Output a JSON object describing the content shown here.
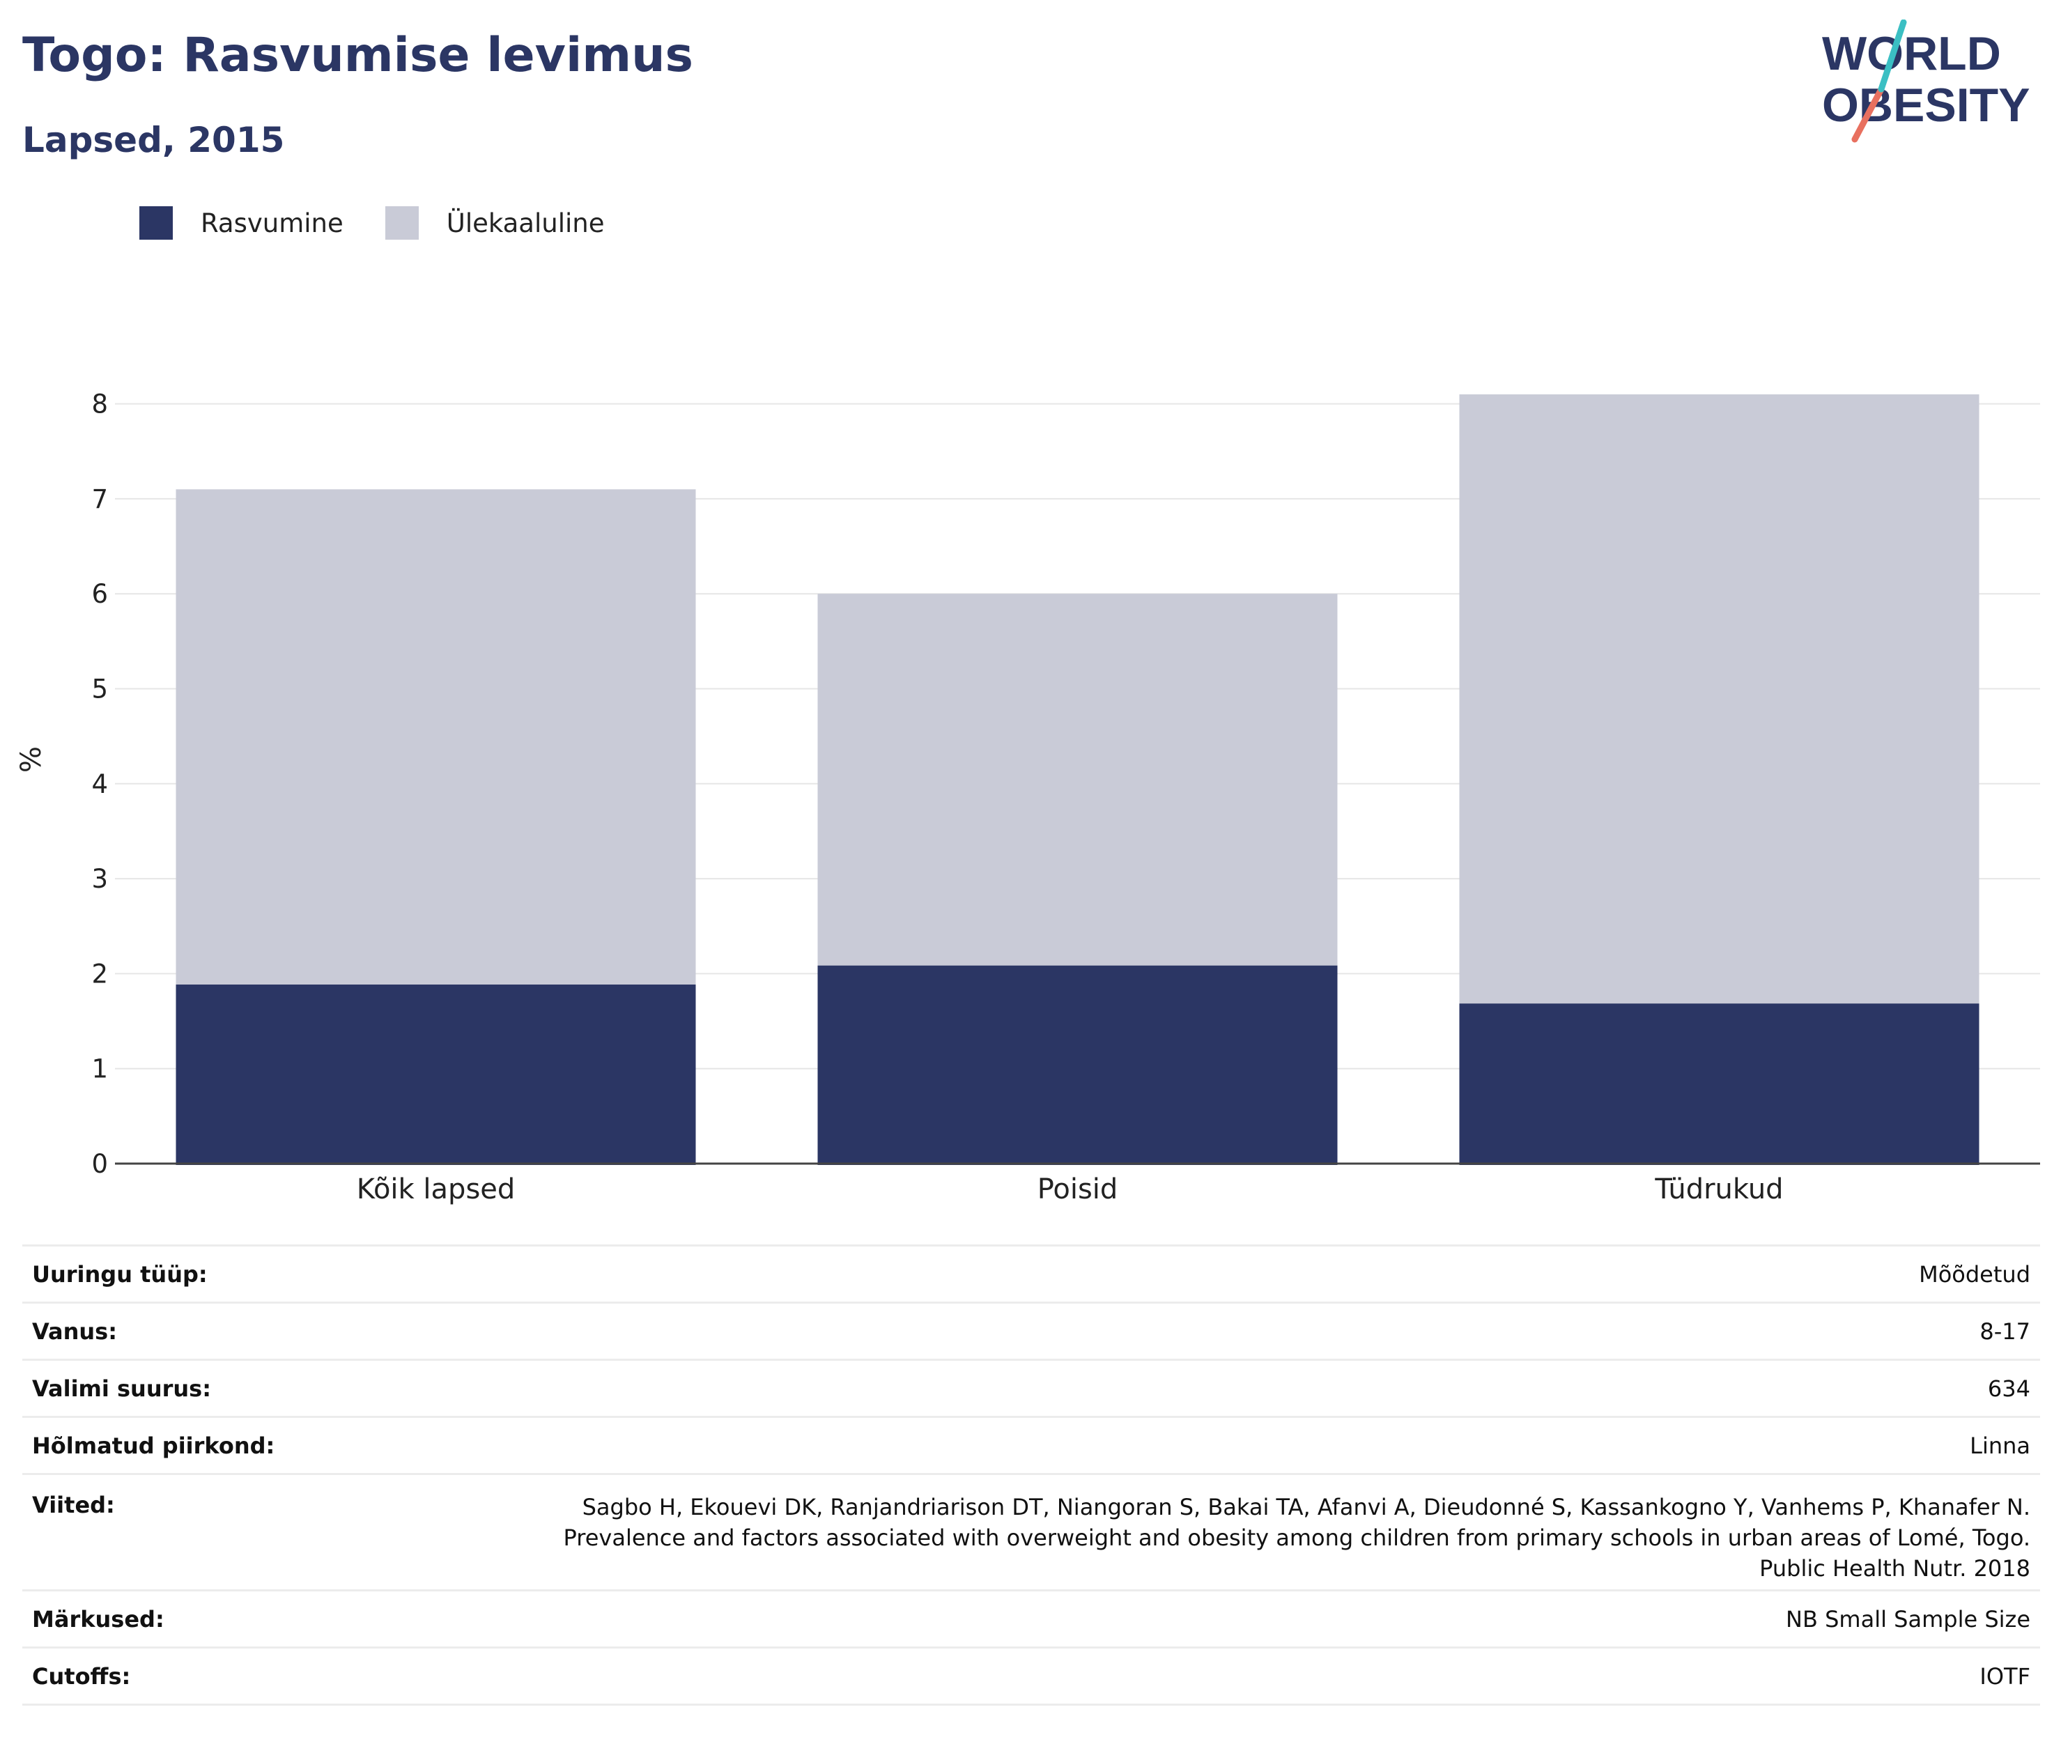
{
  "header": {
    "title": "Togo: Rasvumise levimus",
    "subtitle": "Lapsed, 2015",
    "logo": {
      "line1": "WORLD",
      "line2": "OBESITY"
    }
  },
  "legend": [
    {
      "label": "Rasvumine",
      "color": "#2b3664"
    },
    {
      "label": "Ülekaaluline",
      "color": "#c9cbd7"
    }
  ],
  "chart_data": {
    "type": "bar",
    "stacked": true,
    "categories": [
      "Kõik lapsed",
      "Poisid",
      "Tüdrukud"
    ],
    "series": [
      {
        "name": "Rasvumine",
        "color": "#2b3664",
        "values": [
          1.9,
          2.1,
          1.7
        ]
      },
      {
        "name": "Ülekaaluline",
        "color": "#c9cbd7",
        "values": [
          5.2,
          3.9,
          6.4
        ]
      }
    ],
    "ylabel": "%",
    "ylim": [
      0,
      8.2
    ],
    "yticks": [
      0,
      1,
      2,
      3,
      4,
      5,
      6,
      7,
      8
    ],
    "grid": true,
    "legend_position": "top-left"
  },
  "info": {
    "rows": [
      {
        "key": "Uuringu tüüp:",
        "value": "Mõõdetud"
      },
      {
        "key": "Vanus:",
        "value": "8-17"
      },
      {
        "key": "Valimi suurus:",
        "value": "634"
      },
      {
        "key": "Hõlmatud piirkond:",
        "value": "Linna"
      }
    ],
    "references": {
      "key": "Viited:",
      "lines": [
        "Sagbo H, Ekouevi DK, Ranjandriarison DT, Niangoran S, Bakai TA, Afanvi A, Dieudonné S, Kassankogno Y, Vanhems P, Khanafer N.",
        "Prevalence and factors associated with overweight and obesity among children from primary schools in urban areas of Lomé, Togo.",
        "Public Health Nutr. 2018"
      ]
    },
    "notes": {
      "key": "Märkused:",
      "value": "NB Small Sample Size"
    },
    "cutoffs": {
      "key": "Cutoffs:",
      "value": "IOTF"
    }
  }
}
